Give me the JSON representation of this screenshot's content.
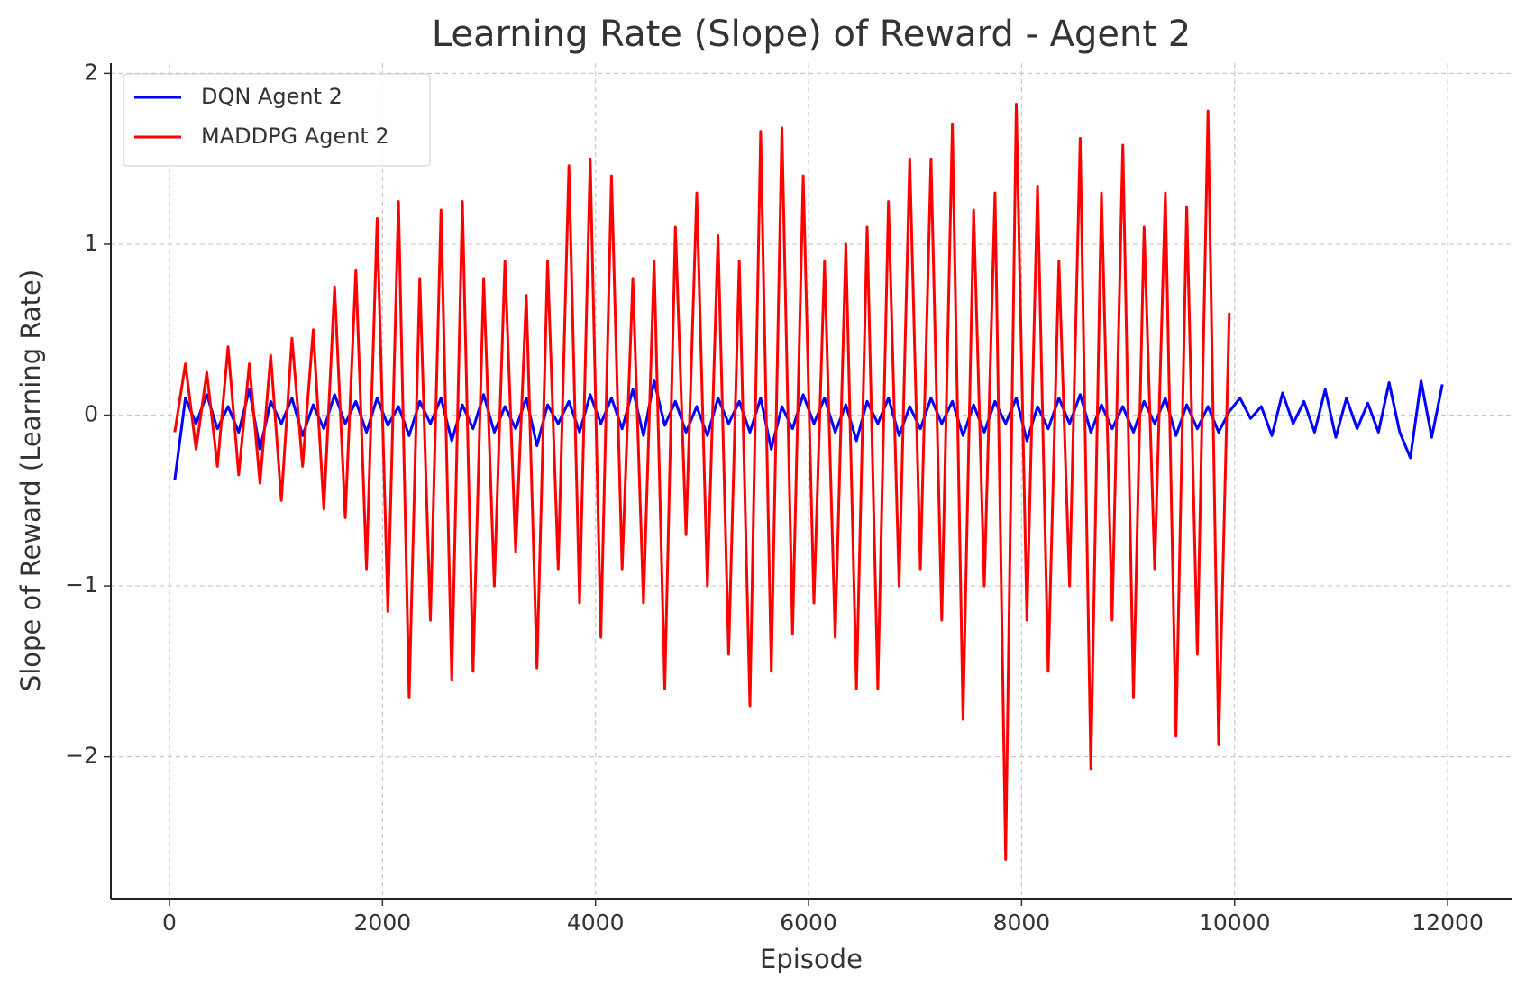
{
  "chart_data": {
    "type": "line",
    "title": "Learning Rate (Slope) of Reward - Agent 2",
    "x_label": "Episode",
    "y_label": "Slope of Reward (Learning Rate)",
    "xlim": [
      -550,
      12600
    ],
    "ylim": [
      -2.83,
      2.06
    ],
    "xticks": [
      0,
      2000,
      4000,
      6000,
      8000,
      10000,
      12000
    ],
    "yticks": [
      {
        "value": -2,
        "label": "−2"
      },
      {
        "value": -1,
        "label": "−1"
      },
      0,
      1,
      2
    ],
    "grid": true,
    "legend": "upper left",
    "series": [
      {
        "name": "DQN Agent 2",
        "color": "#0000ff",
        "x": [
          50,
          150,
          250,
          350,
          450,
          550,
          650,
          750,
          850,
          950,
          1050,
          1150,
          1250,
          1350,
          1450,
          1550,
          1650,
          1750,
          1850,
          1950,
          2050,
          2150,
          2250,
          2350,
          2450,
          2550,
          2650,
          2750,
          2850,
          2950,
          3050,
          3150,
          3250,
          3350,
          3450,
          3550,
          3650,
          3750,
          3850,
          3950,
          4050,
          4150,
          4250,
          4350,
          4450,
          4550,
          4650,
          4750,
          4850,
          4950,
          5050,
          5150,
          5250,
          5350,
          5450,
          5550,
          5650,
          5750,
          5850,
          5950,
          6050,
          6150,
          6250,
          6350,
          6450,
          6550,
          6650,
          6750,
          6850,
          6950,
          7050,
          7150,
          7250,
          7350,
          7450,
          7550,
          7650,
          7750,
          7850,
          7950,
          8050,
          8150,
          8250,
          8350,
          8450,
          8550,
          8650,
          8750,
          8850,
          8950,
          9050,
          9150,
          9250,
          9350,
          9450,
          9550,
          9650,
          9750,
          9850,
          9950,
          10050,
          10150,
          10250,
          10350,
          10450,
          10550,
          10650,
          10750,
          10850,
          10950,
          11050,
          11150,
          11250,
          11350,
          11450,
          11550,
          11650,
          11750,
          11850,
          11950
        ],
        "values": [
          -0.38,
          0.1,
          -0.05,
          0.12,
          -0.08,
          0.05,
          -0.1,
          0.15,
          -0.2,
          0.08,
          -0.05,
          0.1,
          -0.12,
          0.06,
          -0.08,
          0.12,
          -0.05,
          0.08,
          -0.1,
          0.1,
          -0.06,
          0.05,
          -0.12,
          0.08,
          -0.05,
          0.1,
          -0.15,
          0.06,
          -0.08,
          0.12,
          -0.1,
          0.05,
          -0.08,
          0.1,
          -0.18,
          0.06,
          -0.05,
          0.08,
          -0.1,
          0.12,
          -0.05,
          0.1,
          -0.08,
          0.15,
          -0.12,
          0.2,
          -0.06,
          0.08,
          -0.1,
          0.05,
          -0.12,
          0.1,
          -0.05,
          0.08,
          -0.1,
          0.1,
          -0.2,
          0.05,
          -0.08,
          0.12,
          -0.05,
          0.1,
          -0.1,
          0.06,
          -0.15,
          0.08,
          -0.05,
          0.1,
          -0.12,
          0.05,
          -0.08,
          0.1,
          -0.05,
          0.08,
          -0.12,
          0.06,
          -0.1,
          0.08,
          -0.05,
          0.1,
          -0.15,
          0.05,
          -0.08,
          0.1,
          -0.05,
          0.12,
          -0.1,
          0.06,
          -0.08,
          0.05,
          -0.1,
          0.08,
          -0.05,
          0.1,
          -0.12,
          0.06,
          -0.08,
          0.05,
          -0.1,
          0.02,
          0.1,
          -0.02,
          0.05,
          -0.12,
          0.13,
          -0.05,
          0.08,
          -0.1,
          0.15,
          -0.13,
          0.1,
          -0.08,
          0.07,
          -0.1,
          0.19,
          -0.1,
          -0.25,
          0.2,
          -0.13,
          0.18
        ]
      },
      {
        "name": "MADDPG Agent 2",
        "color": "#ff0000",
        "x": [
          50,
          150,
          250,
          350,
          450,
          550,
          650,
          750,
          850,
          950,
          1050,
          1150,
          1250,
          1350,
          1450,
          1550,
          1650,
          1750,
          1850,
          1950,
          2050,
          2150,
          2250,
          2350,
          2450,
          2550,
          2650,
          2750,
          2850,
          2950,
          3050,
          3150,
          3250,
          3350,
          3450,
          3550,
          3650,
          3750,
          3850,
          3950,
          4050,
          4150,
          4250,
          4350,
          4450,
          4550,
          4650,
          4750,
          4850,
          4950,
          5050,
          5150,
          5250,
          5350,
          5450,
          5550,
          5650,
          5750,
          5850,
          5950,
          6050,
          6150,
          6250,
          6350,
          6450,
          6550,
          6650,
          6750,
          6850,
          6950,
          7050,
          7150,
          7250,
          7350,
          7450,
          7550,
          7650,
          7750,
          7850,
          7950,
          8050,
          8150,
          8250,
          8350,
          8450,
          8550,
          8650,
          8750,
          8850,
          8950,
          9050,
          9150,
          9250,
          9350,
          9450,
          9550,
          9650,
          9750,
          9850,
          9950
        ],
        "values": [
          -0.1,
          0.3,
          -0.2,
          0.25,
          -0.3,
          0.4,
          -0.35,
          0.3,
          -0.4,
          0.35,
          -0.5,
          0.45,
          -0.3,
          0.5,
          -0.55,
          0.75,
          -0.6,
          0.85,
          -0.9,
          1.15,
          -1.15,
          1.25,
          -1.65,
          0.8,
          -1.2,
          1.2,
          -1.55,
          1.25,
          -1.5,
          0.8,
          -1.0,
          0.9,
          -0.8,
          0.7,
          -1.48,
          0.9,
          -0.9,
          1.46,
          -1.1,
          1.5,
          -1.3,
          1.4,
          -0.9,
          0.8,
          -1.1,
          0.9,
          -1.6,
          1.1,
          -0.7,
          1.3,
          -1.0,
          1.05,
          -1.4,
          0.9,
          -1.7,
          1.66,
          -1.5,
          1.68,
          -1.28,
          1.4,
          -1.1,
          0.9,
          -1.3,
          1.0,
          -1.6,
          1.1,
          -1.6,
          1.25,
          -1.0,
          1.5,
          -0.9,
          1.5,
          -1.2,
          1.7,
          -1.78,
          1.2,
          -1.0,
          1.3,
          -2.6,
          1.82,
          -1.2,
          1.34,
          -1.5,
          0.9,
          -1.0,
          1.62,
          -2.07,
          1.3,
          -1.2,
          1.58,
          -1.65,
          1.1,
          -0.9,
          1.3,
          -1.88,
          1.22,
          -1.4,
          1.78,
          -1.93,
          0.6
        ]
      }
    ]
  }
}
